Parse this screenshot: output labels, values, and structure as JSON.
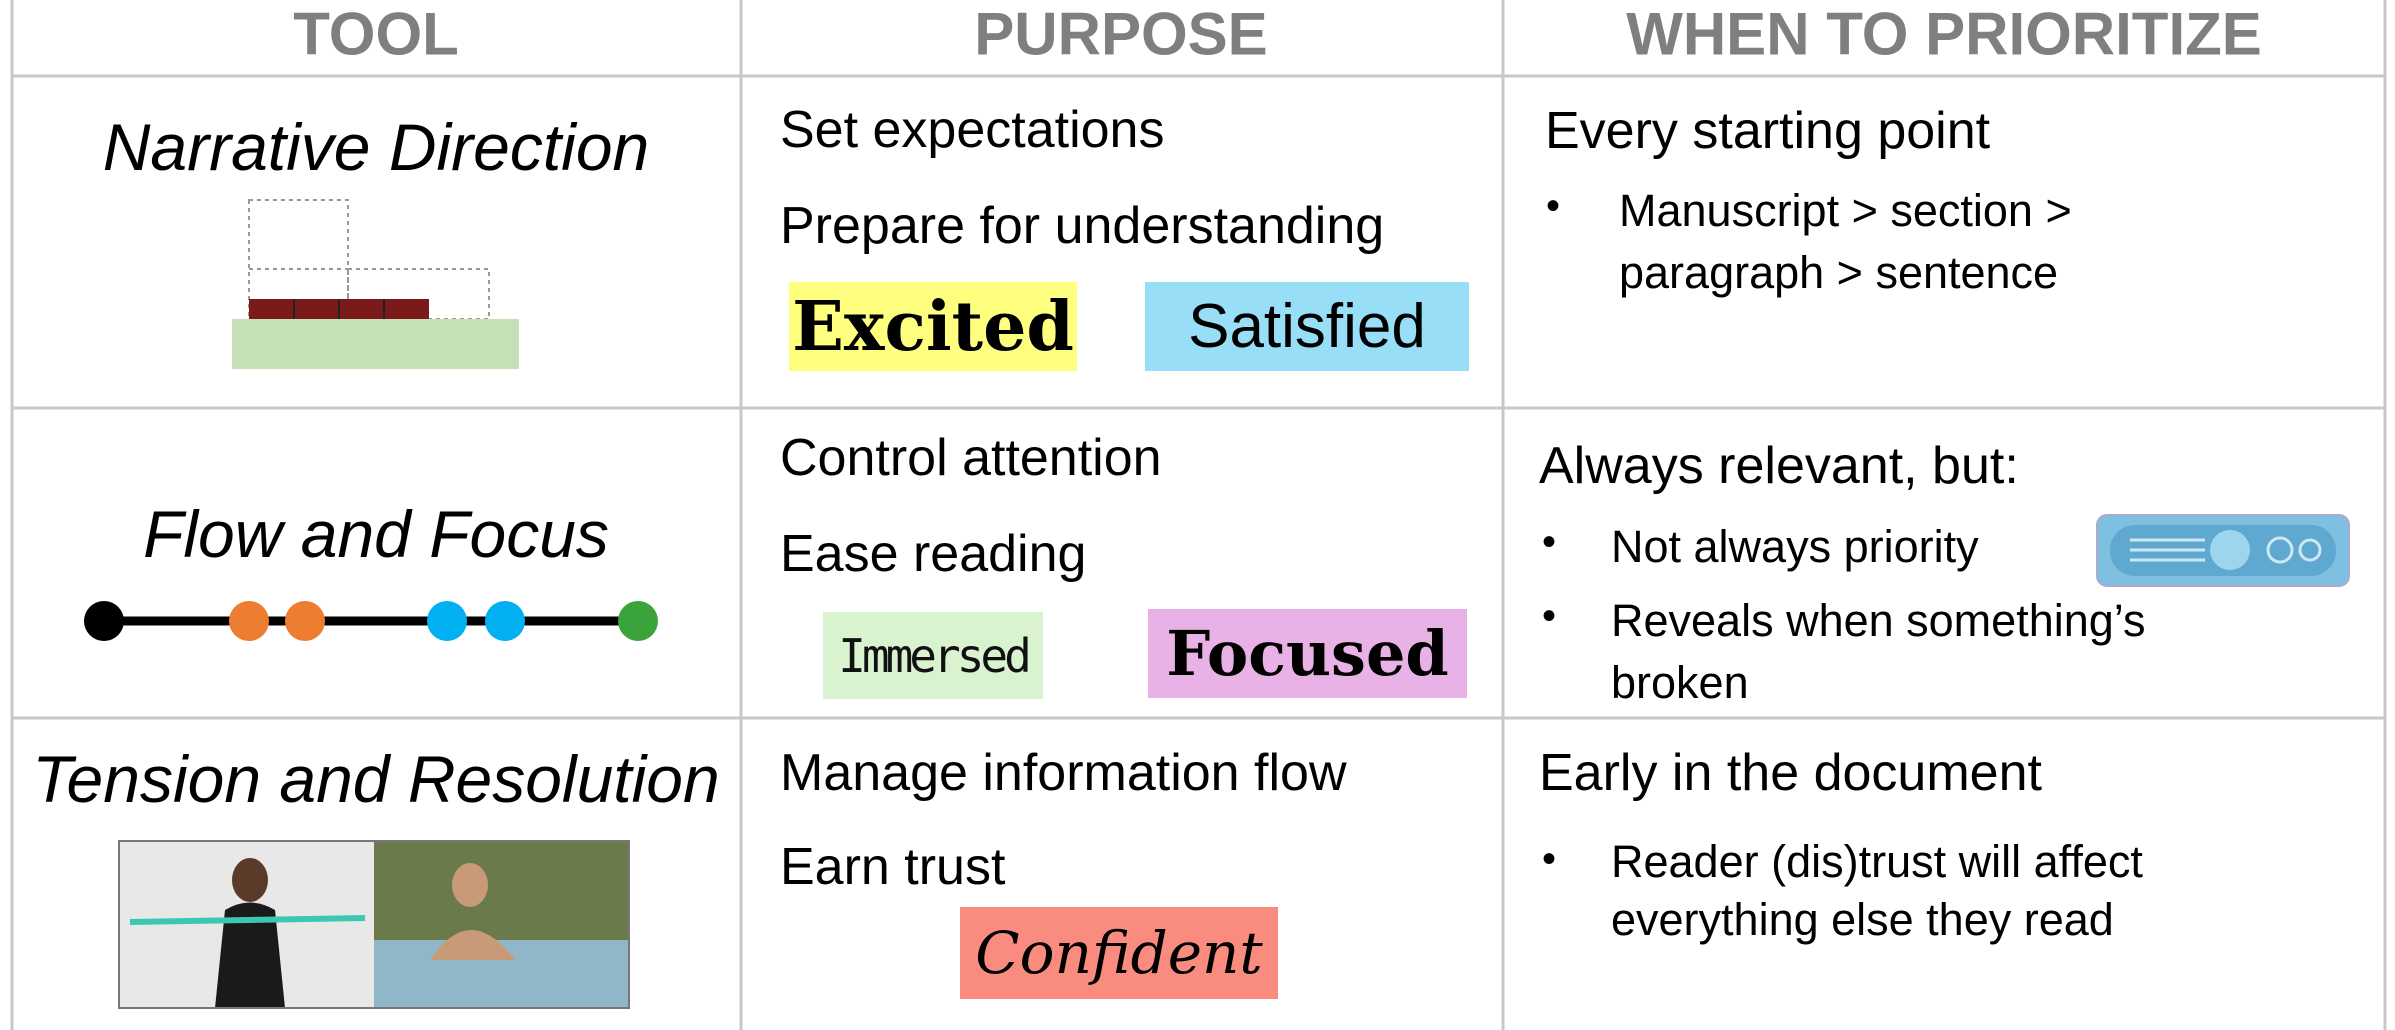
{
  "table": {
    "headers": [
      "TOOL",
      "PURPOSE",
      "WHEN TO PRIORITIZE"
    ],
    "rows": [
      {
        "tool": "Narrative Direction",
        "purpose": [
          "Set expectations",
          "Prepare for understanding"
        ],
        "feelings": [
          "Excited",
          "Satisfied"
        ],
        "when": "Every starting point",
        "bullets": [
          "Manuscript > section > paragraph > sentence"
        ]
      },
      {
        "tool": "Flow and Focus",
        "purpose": [
          "Control attention",
          "Ease reading"
        ],
        "feelings": [
          "Immersed",
          "Focused"
        ],
        "when": "Always relevant, but:",
        "bullets": [
          "Not always priority",
          "Reveals when something’s broken"
        ]
      },
      {
        "tool": "Tension and Resolution",
        "purpose": [
          "Manage information flow",
          "Earn trust"
        ],
        "feelings": [
          "Confident"
        ],
        "when": "Early in the document",
        "bullets": [
          "Reader (dis)trust will affect everything else they read"
        ]
      }
    ]
  }
}
